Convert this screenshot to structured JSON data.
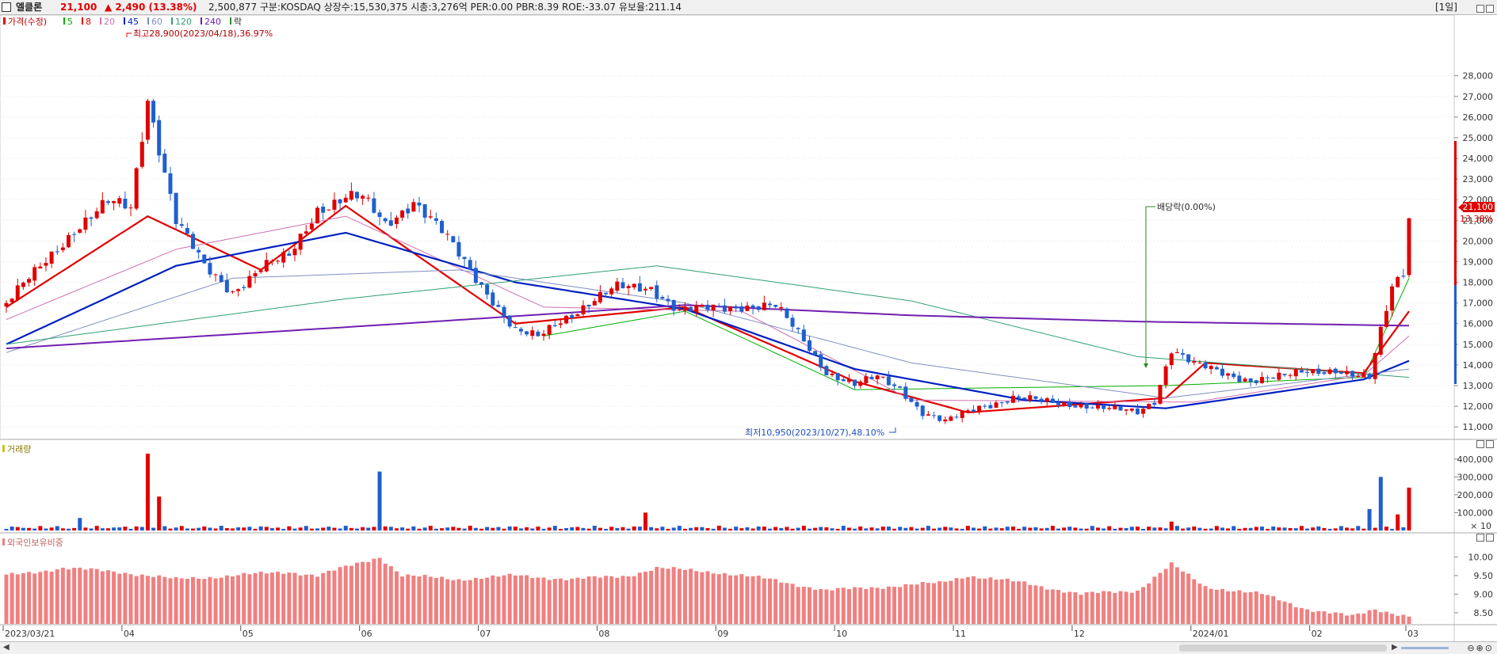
{
  "header": {
    "name": "엘클론",
    "price": "21,100",
    "change": "▲ 2,490 (13.38%)",
    "info": "2,500,877  구분:KOSDAQ 상장수:15,530,375 시총:3,276억 PER:0.00 PBR:8.39 ROE:-33.07 유보율:211.14",
    "period": "[1일]"
  },
  "legend": {
    "price_label": "가격(수정)",
    "ma": [
      {
        "label": "5",
        "color": "#00b000"
      },
      {
        "label": "8",
        "color": "#e00000"
      },
      {
        "label": "20",
        "color": "#d070b0"
      },
      {
        "label": "45",
        "color": "#0020c0"
      },
      {
        "label": "60",
        "color": "#8090c0"
      },
      {
        "label": "120",
        "color": "#30a070"
      },
      {
        "label": "240",
        "color": "#7020b0"
      }
    ],
    "rak": "락"
  },
  "annotations": {
    "high": "최고28,900(2023/04/18),36.97%",
    "low": "최저10,950(2023/10/27),48.10%",
    "dividend": "배당락(0.00%)"
  },
  "price_axis_ticks": [
    "28,000",
    "27,000",
    "26,000",
    "25,000",
    "24,000",
    "23,000",
    "22,000",
    "21,000",
    "20,000",
    "19,000",
    "18,000",
    "17,000",
    "16,000",
    "15,000",
    "14,000",
    "13,000",
    "12,000",
    "11,000"
  ],
  "current_label": {
    "price": "21,100",
    "pct": "13.38%"
  },
  "volume_pane": {
    "title": "거래량",
    "ticks": [
      "400,000",
      "300,000",
      "200,000",
      "100,000"
    ],
    "unit": "× 10"
  },
  "foreign_pane": {
    "title": "외국인보유비중",
    "ticks": [
      "10.00",
      "9.50",
      "9.00",
      "8.50"
    ]
  },
  "x_labels": [
    "2023/03/21",
    "04",
    "05",
    "06",
    "07",
    "08",
    "09",
    "10",
    "11",
    "12",
    "2024/01",
    "02",
    "03"
  ],
  "colors": {
    "up": "#e00000",
    "down": "#1f5fcf",
    "foreign": "#f08080",
    "grid": "#e6e6e6"
  },
  "chart_data": {
    "type": "candlestick",
    "x_start": "2023/03/21",
    "x_end": "2024/03",
    "price_range": [
      10700,
      28900
    ],
    "volume_range": [
      0,
      430000
    ],
    "foreign_range": [
      8.2,
      10.2
    ],
    "close_anchors": [
      [
        0,
        17000
      ],
      [
        5,
        18400
      ],
      [
        12,
        20600
      ],
      [
        18,
        21800
      ],
      [
        22,
        21600
      ],
      [
        25,
        27000
      ],
      [
        30,
        21000
      ],
      [
        35,
        18700
      ],
      [
        40,
        17600
      ],
      [
        45,
        18700
      ],
      [
        50,
        19200
      ],
      [
        55,
        21600
      ],
      [
        60,
        22100
      ],
      [
        63,
        22000
      ],
      [
        67,
        20800
      ],
      [
        72,
        22000
      ],
      [
        77,
        20400
      ],
      [
        82,
        18600
      ],
      [
        86,
        17200
      ],
      [
        90,
        15600
      ],
      [
        94,
        15300
      ],
      [
        98,
        16200
      ],
      [
        103,
        17000
      ],
      [
        108,
        17700
      ],
      [
        114,
        17800
      ],
      [
        119,
        16600
      ],
      [
        124,
        16700
      ],
      [
        130,
        16900
      ],
      [
        136,
        16800
      ],
      [
        141,
        15200
      ],
      [
        145,
        13700
      ],
      [
        150,
        13000
      ],
      [
        154,
        13400
      ],
      [
        158,
        12900
      ],
      [
        162,
        11700
      ],
      [
        166,
        11200
      ],
      [
        172,
        12000
      ],
      [
        178,
        12400
      ],
      [
        184,
        12200
      ],
      [
        190,
        12100
      ],
      [
        196,
        11800
      ],
      [
        200,
        11700
      ],
      [
        203,
        12300
      ],
      [
        206,
        14800
      ],
      [
        210,
        14000
      ],
      [
        215,
        13600
      ],
      [
        220,
        13300
      ],
      [
        226,
        13400
      ],
      [
        230,
        13700
      ],
      [
        235,
        13800
      ],
      [
        239,
        13400
      ],
      [
        241,
        13300
      ],
      [
        243,
        15600
      ],
      [
        245,
        17800
      ],
      [
        247,
        18600
      ],
      [
        248,
        21100
      ]
    ],
    "volume_spikes": [
      [
        13,
        70000
      ],
      [
        25,
        430000
      ],
      [
        27,
        190000
      ],
      [
        66,
        330000
      ],
      [
        113,
        100000
      ],
      [
        206,
        50000
      ],
      [
        241,
        120000
      ],
      [
        243,
        300000
      ],
      [
        246,
        90000
      ],
      [
        248,
        240000
      ]
    ],
    "foreign_anchors": [
      [
        0,
        9.5
      ],
      [
        10,
        9.7
      ],
      [
        20,
        9.6
      ],
      [
        30,
        9.4
      ],
      [
        40,
        9.5
      ],
      [
        50,
        9.6
      ],
      [
        55,
        9.5
      ],
      [
        66,
        10.0
      ],
      [
        70,
        9.5
      ],
      [
        80,
        9.4
      ],
      [
        90,
        9.5
      ],
      [
        100,
        9.4
      ],
      [
        110,
        9.5
      ],
      [
        115,
        9.7
      ],
      [
        125,
        9.6
      ],
      [
        135,
        9.4
      ],
      [
        145,
        9.1
      ],
      [
        155,
        9.2
      ],
      [
        165,
        9.3
      ],
      [
        170,
        9.5
      ],
      [
        180,
        9.3
      ],
      [
        190,
        9.0
      ],
      [
        200,
        9.1
      ],
      [
        206,
        9.8
      ],
      [
        212,
        9.2
      ],
      [
        222,
        9.0
      ],
      [
        230,
        8.6
      ],
      [
        238,
        8.4
      ],
      [
        242,
        8.6
      ],
      [
        248,
        8.4
      ]
    ],
    "ma_lines": {
      "ma5": [
        [
          95,
          15400
        ],
        [
          120,
          16600
        ],
        [
          150,
          12800
        ],
        [
          205,
          13000
        ],
        [
          240,
          13400
        ],
        [
          248,
          18200
        ]
      ],
      "ma8": [
        [
          0,
          16800
        ],
        [
          25,
          21200
        ],
        [
          45,
          18600
        ],
        [
          60,
          21700
        ],
        [
          90,
          16000
        ],
        [
          120,
          16800
        ],
        [
          150,
          13200
        ],
        [
          170,
          11700
        ],
        [
          205,
          12400
        ],
        [
          212,
          14100
        ],
        [
          240,
          13600
        ],
        [
          248,
          16600
        ]
      ],
      "ma20": [
        [
          0,
          16200
        ],
        [
          30,
          19600
        ],
        [
          60,
          21200
        ],
        [
          95,
          16800
        ],
        [
          130,
          16600
        ],
        [
          160,
          12300
        ],
        [
          210,
          12200
        ],
        [
          240,
          13500
        ],
        [
          248,
          15400
        ]
      ],
      "ma45": [
        [
          0,
          15000
        ],
        [
          30,
          18800
        ],
        [
          60,
          20400
        ],
        [
          90,
          18000
        ],
        [
          120,
          16700
        ],
        [
          150,
          13800
        ],
        [
          180,
          12300
        ],
        [
          205,
          11900
        ],
        [
          240,
          13300
        ],
        [
          248,
          14200
        ]
      ],
      "ma60": [
        [
          0,
          14600
        ],
        [
          40,
          18200
        ],
        [
          80,
          18600
        ],
        [
          120,
          17000
        ],
        [
          160,
          14100
        ],
        [
          205,
          12400
        ],
        [
          248,
          13800
        ]
      ],
      "ma120": [
        [
          0,
          15000
        ],
        [
          60,
          17200
        ],
        [
          115,
          18800
        ],
        [
          160,
          17100
        ],
        [
          200,
          14400
        ],
        [
          248,
          13400
        ]
      ],
      "ma240": [
        [
          0,
          14800
        ],
        [
          70,
          16000
        ],
        [
          120,
          16900
        ],
        [
          160,
          16400
        ],
        [
          200,
          16100
        ],
        [
          248,
          15900
        ]
      ]
    }
  }
}
